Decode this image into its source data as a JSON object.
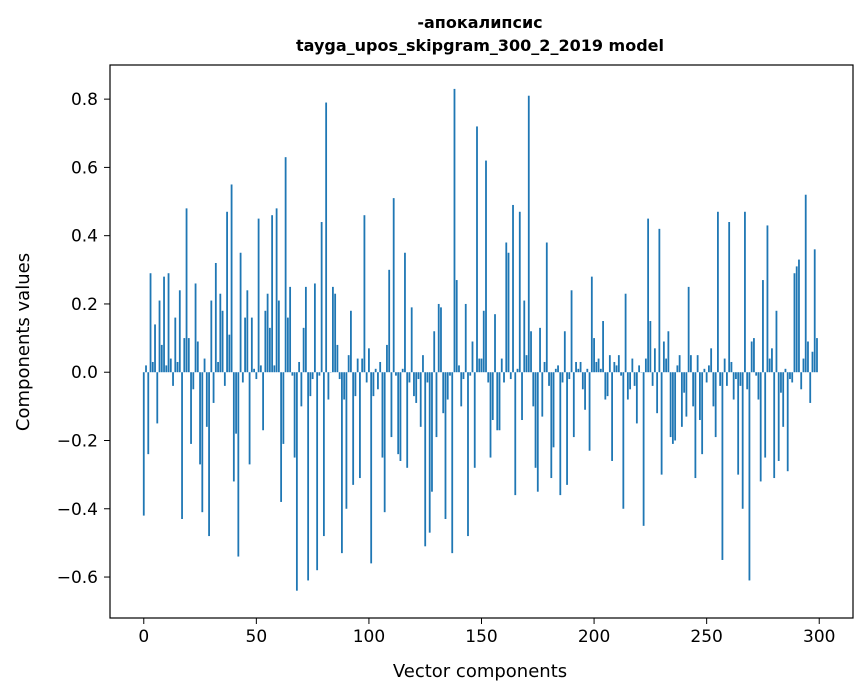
{
  "chart_data": {
    "type": "bar",
    "title_line1": "-апокалипсис",
    "title_line2": "tayga_upos_skipgram_300_2_2019 model",
    "xlabel": "Vector components",
    "ylabel": "Components values",
    "xlim": [
      -15,
      315
    ],
    "ylim": [
      -0.72,
      0.9
    ],
    "xticks": [
      0,
      50,
      100,
      150,
      200,
      250,
      300
    ],
    "yticks": [
      -0.6,
      -0.4,
      -0.2,
      0.0,
      0.2,
      0.4,
      0.6,
      0.8
    ],
    "ytick_labels": [
      "−0.6",
      "−0.4",
      "−0.2",
      "0.0",
      "0.2",
      "0.4",
      "0.6",
      "0.8"
    ],
    "grid": false,
    "bar_color": "#1f77b4",
    "x_start": 0,
    "values": [
      -0.42,
      0.02,
      -0.24,
      0.29,
      0.03,
      0.14,
      -0.15,
      0.21,
      0.08,
      0.28,
      0.02,
      0.29,
      0.04,
      -0.04,
      0.16,
      0.03,
      0.24,
      -0.43,
      0.1,
      0.48,
      0.1,
      -0.21,
      -0.05,
      0.26,
      0.09,
      -0.27,
      -0.41,
      0.04,
      -0.16,
      -0.48,
      0.21,
      -0.09,
      0.32,
      0.03,
      0.23,
      0.18,
      -0.04,
      0.47,
      0.11,
      0.55,
      -0.32,
      -0.18,
      -0.54,
      0.35,
      -0.03,
      0.16,
      0.24,
      -0.27,
      0.16,
      0.01,
      -0.02,
      0.45,
      0.02,
      -0.17,
      0.18,
      0.23,
      0.13,
      0.46,
      0.02,
      0.48,
      0.21,
      -0.38,
      -0.21,
      0.63,
      0.16,
      0.25,
      -0.01,
      -0.25,
      -0.64,
      0.03,
      -0.1,
      0.13,
      0.25,
      -0.61,
      -0.07,
      -0.02,
      0.26,
      -0.58,
      -0.01,
      0.44,
      -0.48,
      0.79,
      -0.08,
      0.0,
      0.25,
      0.23,
      0.08,
      -0.02,
      -0.53,
      -0.08,
      -0.4,
      0.05,
      0.18,
      -0.33,
      -0.07,
      0.04,
      -0.31,
      0.04,
      0.46,
      -0.03,
      0.07,
      -0.56,
      -0.07,
      0.01,
      -0.05,
      0.03,
      -0.25,
      -0.41,
      0.08,
      0.3,
      -0.19,
      0.51,
      -0.01,
      -0.24,
      -0.26,
      0.01,
      0.35,
      -0.28,
      -0.03,
      0.19,
      -0.07,
      -0.09,
      -0.02,
      -0.16,
      0.05,
      -0.51,
      -0.03,
      -0.47,
      -0.35,
      0.12,
      -0.19,
      0.2,
      0.19,
      -0.12,
      -0.43,
      -0.08,
      -0.01,
      -0.53,
      0.83,
      0.27,
      0.02,
      -0.1,
      -0.02,
      0.2,
      -0.48,
      -0.01,
      0.09,
      -0.28,
      0.72,
      0.04,
      0.04,
      0.18,
      0.62,
      -0.03,
      -0.25,
      -0.14,
      0.17,
      -0.17,
      -0.17,
      0.04,
      -0.03,
      0.38,
      0.35,
      -0.02,
      0.49,
      -0.36,
      0.01,
      0.47,
      -0.14,
      0.21,
      0.05,
      0.81,
      0.12,
      -0.1,
      -0.28,
      -0.35,
      0.13,
      -0.13,
      0.03,
      0.38,
      -0.04,
      -0.31,
      -0.22,
      0.01,
      0.02,
      -0.36,
      -0.03,
      0.12,
      -0.33,
      -0.02,
      0.24,
      -0.19,
      0.03,
      0.01,
      0.03,
      -0.05,
      -0.11,
      0.01,
      -0.23,
      0.28,
      0.1,
      0.03,
      0.04,
      0.01,
      0.15,
      -0.08,
      -0.07,
      0.05,
      -0.26,
      0.03,
      0.02,
      0.05,
      -0.01,
      -0.4,
      0.23,
      -0.08,
      -0.05,
      0.04,
      -0.04,
      -0.15,
      0.02,
      0.0,
      -0.45,
      0.04,
      0.45,
      0.15,
      -0.04,
      0.07,
      -0.12,
      0.42,
      -0.3,
      0.09,
      0.04,
      0.12,
      -0.19,
      -0.21,
      -0.2,
      0.02,
      0.05,
      -0.16,
      -0.06,
      -0.13,
      0.25,
      0.05,
      -0.1,
      -0.31,
      0.05,
      -0.14,
      -0.24,
      0.01,
      -0.03,
      0.02,
      0.07,
      -0.1,
      -0.19,
      0.47,
      -0.04,
      -0.55,
      0.04,
      -0.04,
      0.44,
      0.03,
      -0.08,
      -0.02,
      -0.3,
      -0.04,
      -0.4,
      0.47,
      -0.05,
      -0.61,
      0.09,
      0.1,
      -0.01,
      -0.08,
      -0.32,
      0.27,
      -0.25,
      0.43,
      0.04,
      0.07,
      -0.31,
      0.18,
      -0.26,
      -0.06,
      -0.16,
      0.01,
      -0.29,
      -0.02,
      -0.03,
      0.29,
      0.31,
      0.33,
      -0.05,
      0.04,
      0.52,
      0.09,
      -0.09,
      0.06,
      0.36,
      0.1
    ]
  }
}
